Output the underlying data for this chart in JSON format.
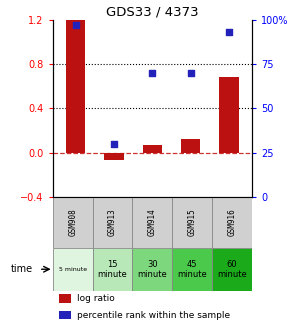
{
  "title": "GDS33 / 4373",
  "categories": [
    "GSM908",
    "GSM913",
    "GSM914",
    "GSM915",
    "GSM916"
  ],
  "log_ratio": [
    1.2,
    -0.07,
    0.07,
    0.12,
    0.68
  ],
  "percentile_rank": [
    97,
    30,
    70,
    70,
    93
  ],
  "bar_color": "#bb1111",
  "dot_color": "#2222bb",
  "ylim_left": [
    -0.4,
    1.2
  ],
  "ylim_right": [
    0,
    100
  ],
  "yticks_left": [
    -0.4,
    0,
    0.4,
    0.8,
    1.2
  ],
  "yticks_right": [
    0,
    25,
    50,
    75,
    100
  ],
  "ytick_right_labels": [
    "0",
    "25",
    "50",
    "75",
    "100%"
  ],
  "hlines": [
    0.4,
    0.8
  ],
  "zero_line_y": 0,
  "time_labels": [
    "5 minute",
    "15\nminute",
    "30\nminute",
    "45\nminute",
    "60\nminute"
  ],
  "time_colors": [
    "#dff5df",
    "#b8e8b8",
    "#7dd87d",
    "#4bc94b",
    "#1aaa1a"
  ],
  "gsm_bg": "#d0d0d0",
  "table_border": "#888888",
  "legend_items": [
    [
      "log ratio",
      "#bb1111"
    ],
    [
      "percentile rank within the sample",
      "#2222bb"
    ]
  ]
}
